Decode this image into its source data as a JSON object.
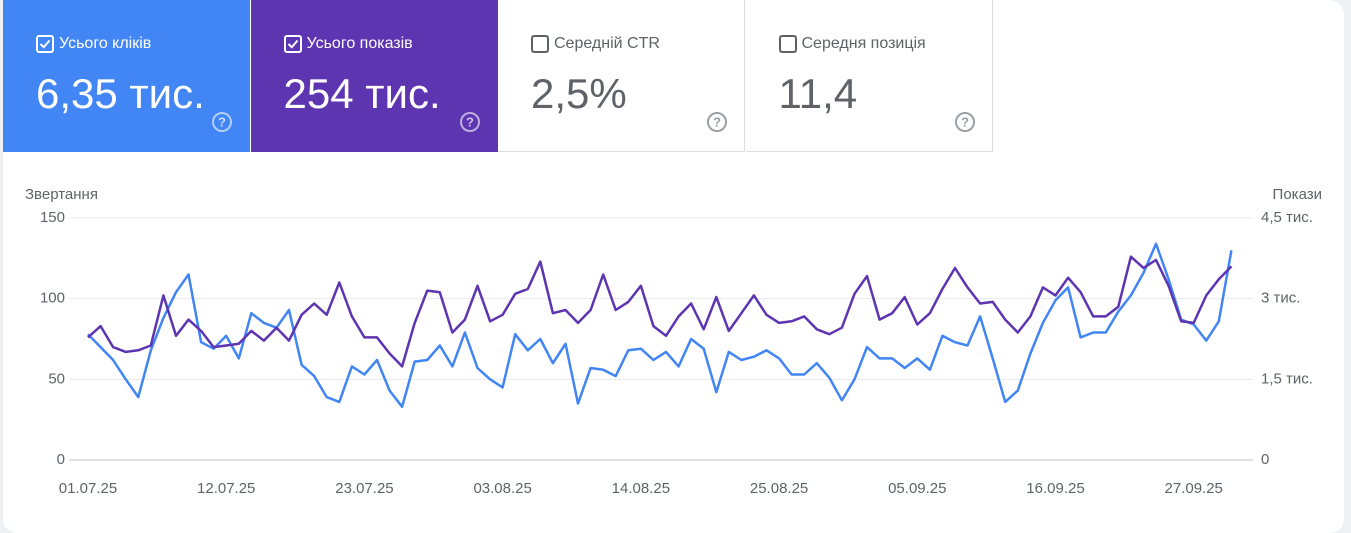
{
  "cards": [
    {
      "label": "Усього кліків",
      "value": "6,35 тис.",
      "checked": true,
      "color": "#4285f4"
    },
    {
      "label": "Усього показів",
      "value": "254 тис.",
      "checked": true,
      "color": "#5e35b1"
    },
    {
      "label": "Середній CTR",
      "value": "2,5%",
      "checked": false
    },
    {
      "label": "Середня позиція",
      "value": "11,4",
      "checked": false
    }
  ],
  "chart_data": {
    "type": "line",
    "ylabel": "Звертання",
    "y2label": "Покази",
    "categories": [
      "01.07.25",
      null,
      null,
      null,
      null,
      null,
      null,
      null,
      null,
      null,
      null,
      "12.07.25",
      null,
      null,
      null,
      null,
      null,
      null,
      null,
      null,
      null,
      null,
      "23.07.25",
      null,
      null,
      null,
      null,
      null,
      null,
      null,
      null,
      null,
      null,
      "03.08.25",
      null,
      null,
      null,
      null,
      null,
      null,
      null,
      null,
      null,
      null,
      "14.08.25",
      null,
      null,
      null,
      null,
      null,
      null,
      null,
      null,
      null,
      null,
      "25.08.25",
      null,
      null,
      null,
      null,
      null,
      null,
      null,
      null,
      null,
      null,
      "05.09.25",
      null,
      null,
      null,
      null,
      null,
      null,
      null,
      null,
      null,
      null,
      "16.09.25",
      null,
      null,
      null,
      null,
      null,
      null,
      null,
      null,
      null,
      null,
      "27.09.25",
      null,
      null,
      null
    ],
    "ylim": [
      0,
      150
    ],
    "yticks": [
      0,
      50,
      100,
      150
    ],
    "y2lim": [
      0,
      4500
    ],
    "y2ticks": [
      0,
      {
        "value": 1500,
        "label": "1,5 тис."
      },
      {
        "value": 3000,
        "label": "3 тис."
      },
      {
        "value": 4500,
        "label": "4,5 тис."
      }
    ],
    "grid": true,
    "series": [
      {
        "name": "Усього кліків",
        "color": "#4285f4",
        "axis": "y",
        "values": [
          78,
          70,
          62,
          50,
          39,
          68,
          88,
          104,
          115,
          73,
          69,
          77,
          63,
          91,
          85,
          82,
          93,
          59,
          52,
          39,
          36,
          58,
          53,
          62,
          43,
          33,
          61,
          62,
          71,
          58,
          79,
          57,
          50,
          45,
          78,
          68,
          75,
          60,
          72,
          35,
          57,
          56,
          52,
          68,
          69,
          62,
          67,
          58,
          75,
          69,
          42,
          67,
          62,
          64,
          68,
          63,
          53,
          53,
          60,
          51,
          37,
          50,
          70,
          63,
          63,
          57,
          63,
          56,
          77,
          73,
          71,
          89,
          63,
          36,
          43,
          66,
          85,
          99,
          107,
          76,
          79,
          79,
          92,
          102,
          116,
          134,
          112,
          87,
          84,
          74,
          86,
          130
        ]
      },
      {
        "name": "Усього показів",
        "color": "#5e35b1",
        "axis": "y2",
        "values": [
          2280,
          2490,
          2100,
          2010,
          2040,
          2130,
          3060,
          2310,
          2610,
          2400,
          2100,
          2130,
          2160,
          2400,
          2220,
          2460,
          2220,
          2700,
          2910,
          2700,
          3300,
          2670,
          2280,
          2280,
          1980,
          1740,
          2550,
          3150,
          3120,
          2370,
          2610,
          3240,
          2580,
          2700,
          3090,
          3180,
          3690,
          2730,
          2790,
          2550,
          2790,
          3450,
          2790,
          2940,
          3240,
          2490,
          2310,
          2670,
          2910,
          2430,
          3030,
          2400,
          2730,
          3060,
          2700,
          2550,
          2580,
          2670,
          2430,
          2340,
          2460,
          3090,
          3420,
          2610,
          2730,
          3030,
          2520,
          2730,
          3180,
          3570,
          3210,
          2910,
          2940,
          2610,
          2370,
          2670,
          3210,
          3060,
          3390,
          3120,
          2670,
          2670,
          2850,
          3780,
          3570,
          3720,
          3240,
          2580,
          2550,
          3060,
          3360,
          3600
        ]
      }
    ]
  }
}
